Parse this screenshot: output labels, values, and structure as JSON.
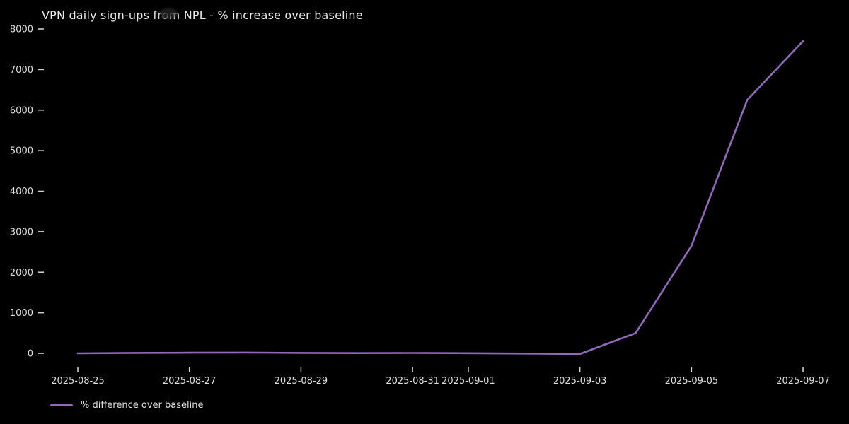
{
  "figure": {
    "background_color": "#000000",
    "text_color": "#dedede",
    "tick_color": "#cfcfcf"
  },
  "chart_data": {
    "type": "line",
    "title": "VPN daily sign-ups from NPL - % increase over baseline",
    "xlabel": "",
    "ylabel": "",
    "grid": false,
    "legend_position": "below-axes-lower-left",
    "x": [
      "2025-08-25",
      "2025-08-26",
      "2025-08-27",
      "2025-08-28",
      "2025-08-29",
      "2025-08-30",
      "2025-08-31",
      "2025-09-01",
      "2025-09-02",
      "2025-09-03",
      "2025-09-04",
      "2025-09-05",
      "2025-09-06",
      "2025-09-07"
    ],
    "series": [
      {
        "name": "% difference over baseline",
        "color": "#9467bd",
        "values": [
          0,
          10,
          15,
          20,
          10,
          5,
          8,
          3,
          -5,
          -15,
          500,
          2650,
          6250,
          7700
        ]
      }
    ],
    "xtick_labels": [
      "2025-08-25",
      "2025-08-27",
      "2025-08-29",
      "2025-08-31",
      "2025-09-01",
      "2025-09-03",
      "2025-09-05",
      "2025-09-07"
    ],
    "ytick_labels": [
      "0",
      "1000",
      "2000",
      "3000",
      "4000",
      "5000",
      "6000",
      "7000",
      "8000"
    ],
    "yticks": [
      0,
      1000,
      2000,
      3000,
      4000,
      5000,
      6000,
      7000,
      8000
    ],
    "ylim": [
      0,
      8000
    ]
  }
}
